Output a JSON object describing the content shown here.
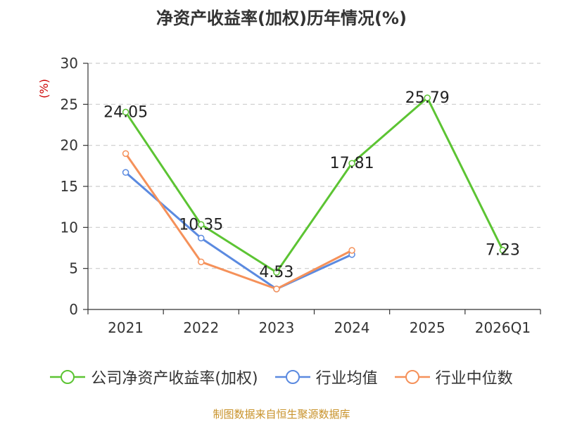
{
  "chart_data": {
    "type": "line",
    "title": "净资产收益率(加权)历年情况(%)",
    "ylabel": "(%)",
    "xlabel": "",
    "categories": [
      "2021",
      "2022",
      "2023",
      "2024",
      "2025",
      "2026Q1"
    ],
    "ylim": [
      0,
      30
    ],
    "yticks": [
      0,
      5,
      10,
      15,
      20,
      25,
      30
    ],
    "grid": true,
    "legend_position": "bottom",
    "series": [
      {
        "name": "公司净资产收益率(加权)",
        "color": "#5cc433",
        "values": [
          24.05,
          10.35,
          4.53,
          17.81,
          25.79,
          7.23
        ],
        "labels": [
          "24.05",
          "10.35",
          "4.53",
          "17.81",
          "25.79",
          "7.23"
        ]
      },
      {
        "name": "行业均值",
        "color": "#5b8ae0",
        "values": [
          16.7,
          8.7,
          2.5,
          6.7,
          null,
          null
        ]
      },
      {
        "name": "行业中位数",
        "color": "#f5915a",
        "values": [
          19.0,
          5.8,
          2.5,
          7.2,
          null,
          null
        ]
      }
    ]
  },
  "source": "制图数据来自恒生聚源数据库"
}
